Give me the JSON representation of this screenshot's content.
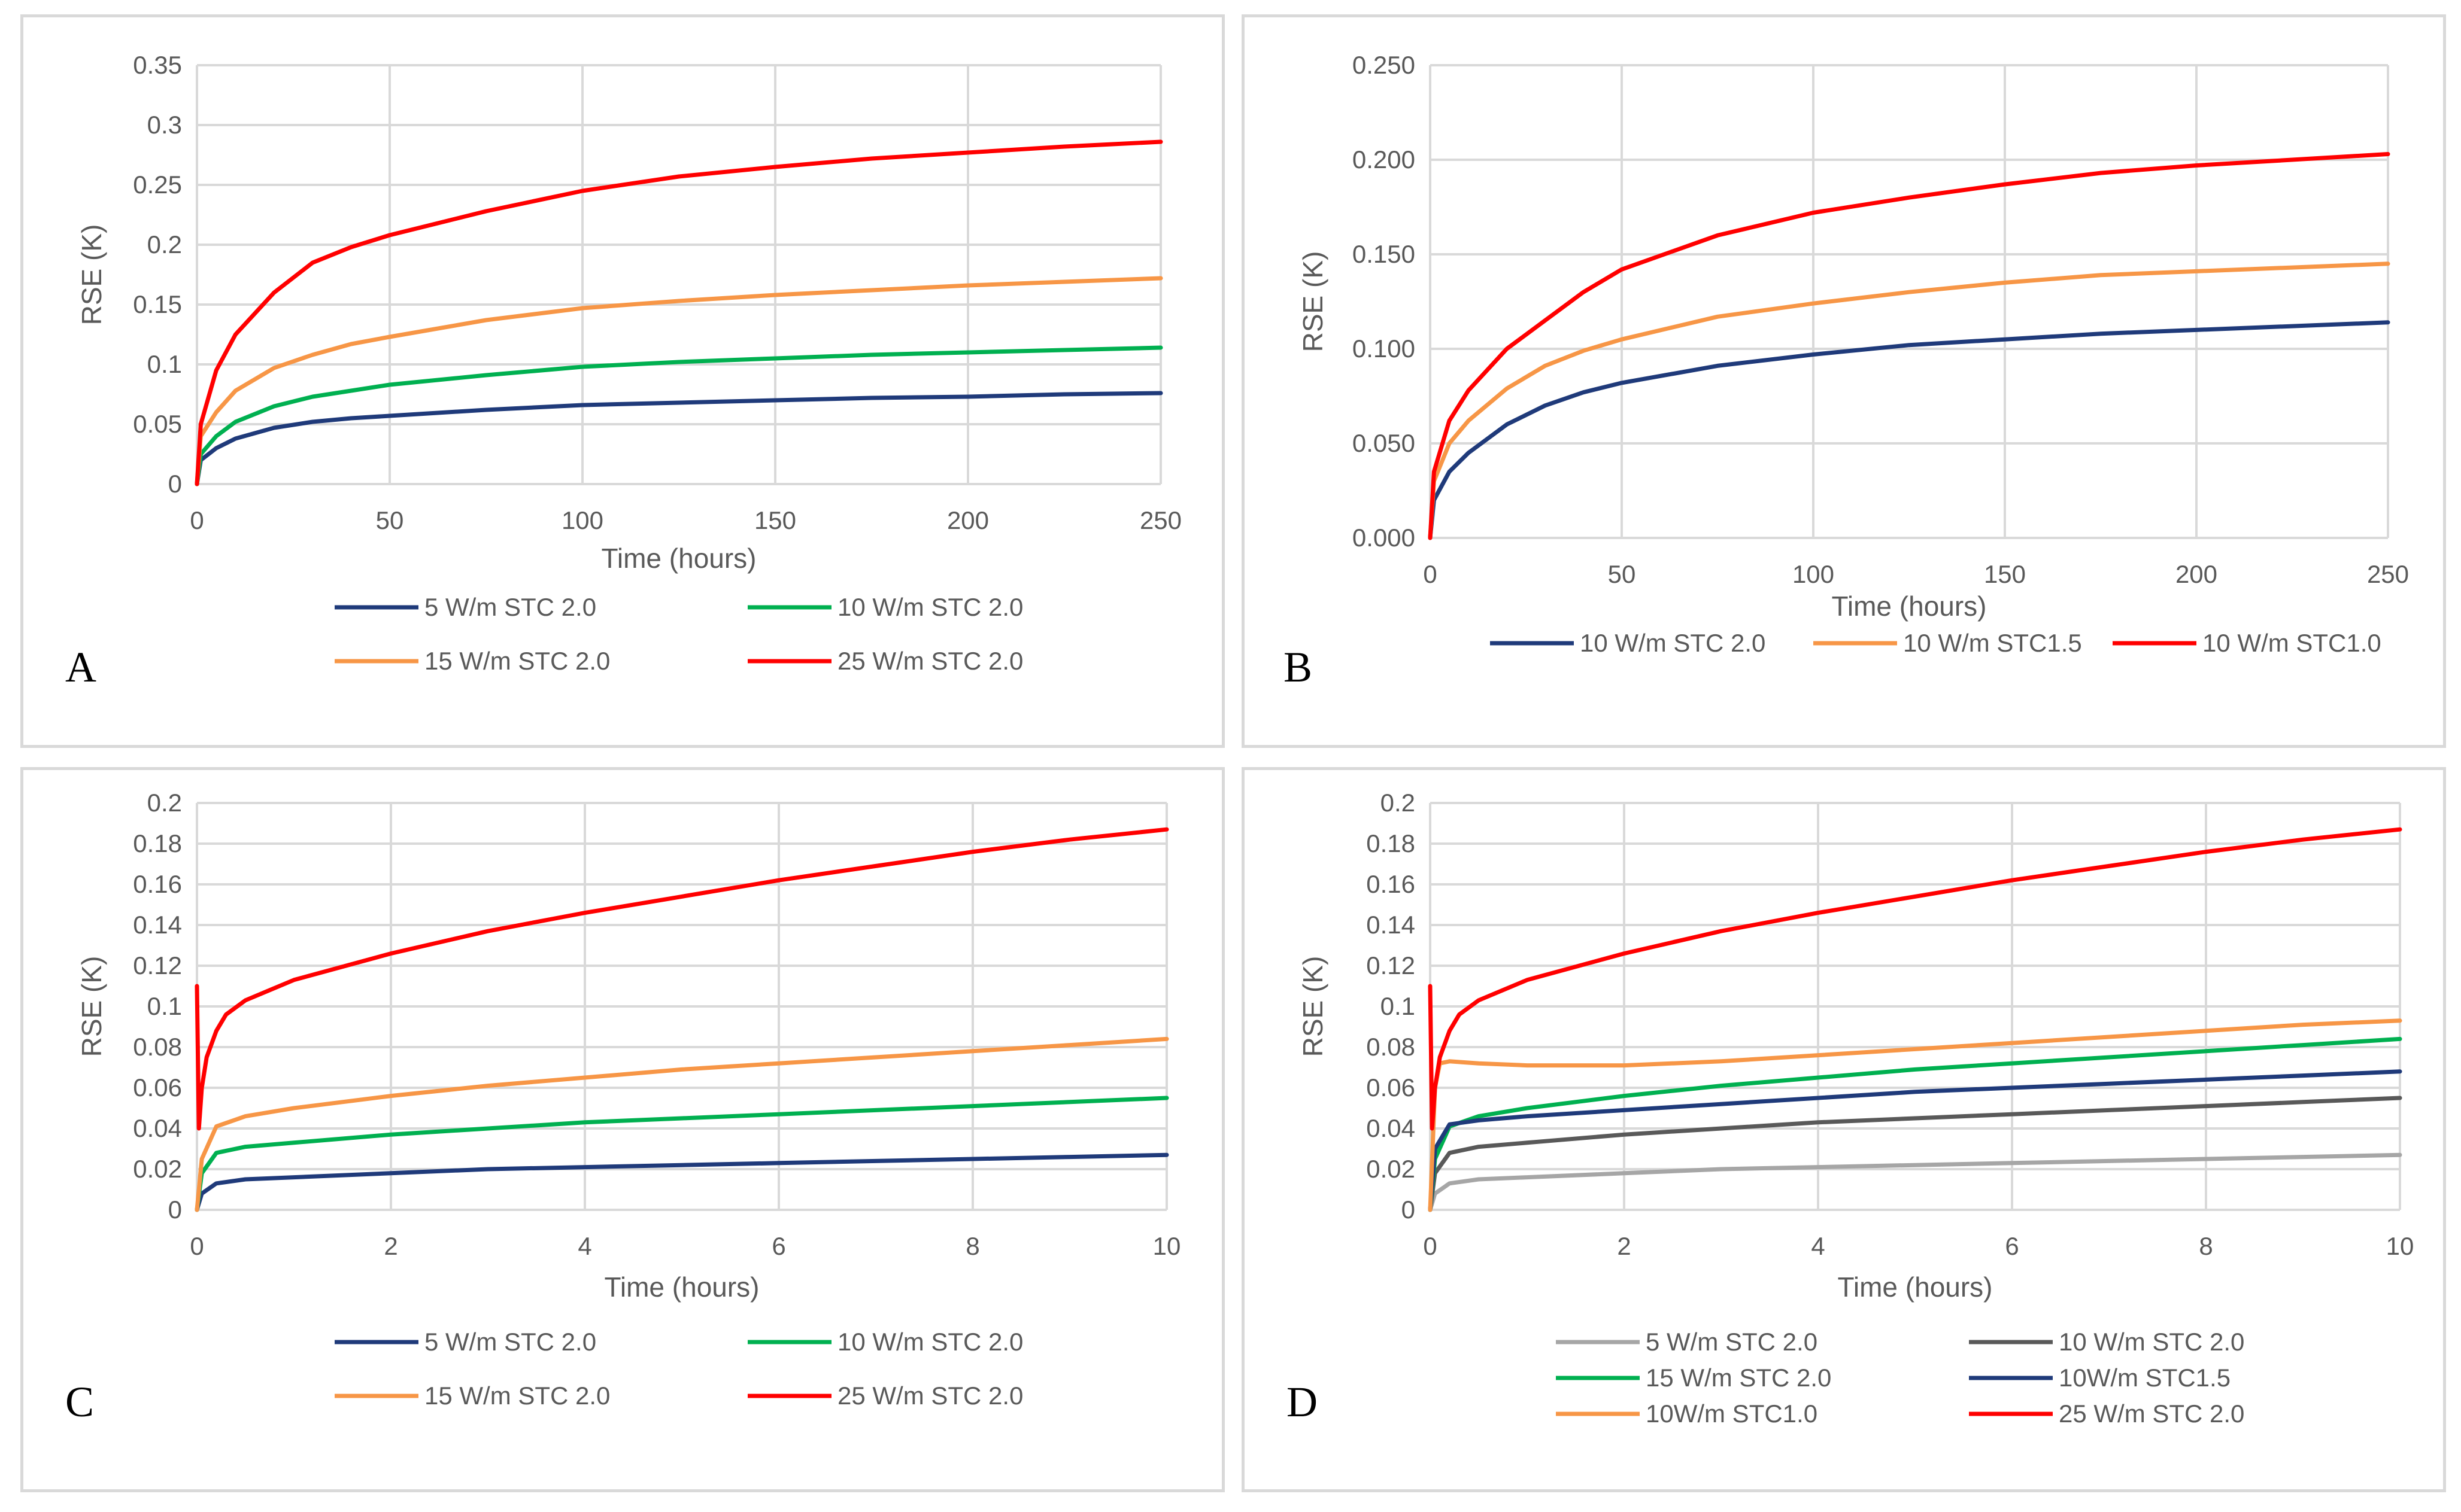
{
  "chart_data": [
    {
      "id": "A",
      "type": "line",
      "panel_label": "A",
      "xlabel": "Time (hours)",
      "ylabel": "RSE (K)",
      "xlim": [
        0,
        250
      ],
      "ylim": [
        0,
        0.35
      ],
      "xticks": [
        "0",
        "50",
        "100",
        "150",
        "200",
        "250"
      ],
      "yticks": [
        "0",
        "0.05",
        "0.1",
        "0.15",
        "0.2",
        "0.25",
        "0.3",
        "0.35"
      ],
      "grid": true,
      "legend_position": "bottom",
      "series": [
        {
          "name": "5 W/m STC 2.0",
          "color": "#1f3a7a",
          "x": [
            0,
            1,
            5,
            10,
            20,
            30,
            40,
            50,
            75,
            100,
            125,
            150,
            175,
            200,
            225,
            250
          ],
          "y": [
            0,
            0.02,
            0.03,
            0.038,
            0.047,
            0.052,
            0.055,
            0.057,
            0.062,
            0.066,
            0.068,
            0.07,
            0.072,
            0.073,
            0.075,
            0.076
          ]
        },
        {
          "name": "10 W/m STC 2.0",
          "color": "#00b050",
          "x": [
            0,
            1,
            5,
            10,
            20,
            30,
            40,
            50,
            75,
            100,
            125,
            150,
            175,
            200,
            225,
            250
          ],
          "y": [
            0,
            0.025,
            0.04,
            0.052,
            0.065,
            0.073,
            0.078,
            0.083,
            0.091,
            0.098,
            0.102,
            0.105,
            0.108,
            0.11,
            0.112,
            0.114
          ]
        },
        {
          "name": "15 W/m STC 2.0",
          "color": "#f79646",
          "x": [
            0,
            1,
            5,
            10,
            20,
            30,
            40,
            50,
            75,
            100,
            125,
            150,
            175,
            200,
            225,
            250
          ],
          "y": [
            0,
            0.04,
            0.06,
            0.078,
            0.097,
            0.108,
            0.117,
            0.123,
            0.137,
            0.147,
            0.153,
            0.158,
            0.162,
            0.166,
            0.169,
            0.172
          ]
        },
        {
          "name": "25 W/m STC 2.0",
          "color": "#ff0000",
          "x": [
            0,
            1,
            5,
            10,
            20,
            30,
            40,
            50,
            75,
            100,
            125,
            150,
            175,
            200,
            225,
            250
          ],
          "y": [
            0,
            0.05,
            0.095,
            0.125,
            0.16,
            0.185,
            0.198,
            0.208,
            0.228,
            0.245,
            0.257,
            0.265,
            0.272,
            0.277,
            0.282,
            0.286
          ]
        }
      ]
    },
    {
      "id": "B",
      "type": "line",
      "panel_label": "B",
      "xlabel": "Time (hours)",
      "ylabel": "RSE (K)",
      "xlim": [
        0,
        250
      ],
      "ylim": [
        0,
        0.25
      ],
      "xticks": [
        "0",
        "50",
        "100",
        "150",
        "200",
        "250"
      ],
      "yticks": [
        "0.000",
        "0.050",
        "0.100",
        "0.150",
        "0.200",
        "0.250"
      ],
      "grid": true,
      "legend_position": "bottom",
      "series": [
        {
          "name": "10 W/m STC 2.0",
          "color": "#1f3a7a",
          "x": [
            0,
            1,
            5,
            10,
            20,
            30,
            40,
            50,
            75,
            100,
            125,
            150,
            175,
            200,
            225,
            250
          ],
          "y": [
            0,
            0.02,
            0.035,
            0.045,
            0.06,
            0.07,
            0.077,
            0.082,
            0.091,
            0.097,
            0.102,
            0.105,
            0.108,
            0.11,
            0.112,
            0.114
          ]
        },
        {
          "name": "10 W/m STC1.5",
          "color": "#f79646",
          "x": [
            0,
            1,
            5,
            10,
            20,
            30,
            40,
            50,
            75,
            100,
            125,
            150,
            175,
            200,
            225,
            250
          ],
          "y": [
            0,
            0.03,
            0.05,
            0.062,
            0.079,
            0.091,
            0.099,
            0.105,
            0.117,
            0.124,
            0.13,
            0.135,
            0.139,
            0.141,
            0.143,
            0.145
          ]
        },
        {
          "name": "10 W/m STC1.0",
          "color": "#ff0000",
          "x": [
            0,
            1,
            5,
            10,
            20,
            30,
            40,
            50,
            75,
            100,
            125,
            150,
            175,
            200,
            225,
            250
          ],
          "y": [
            0,
            0.035,
            0.062,
            0.078,
            0.1,
            0.115,
            0.13,
            0.142,
            0.16,
            0.172,
            0.18,
            0.187,
            0.193,
            0.197,
            0.2,
            0.203
          ]
        }
      ]
    },
    {
      "id": "C",
      "type": "line",
      "panel_label": "C",
      "xlabel": "Time (hours)",
      "ylabel": "RSE (K)",
      "xlim": [
        0,
        10
      ],
      "ylim": [
        0,
        0.2
      ],
      "xticks": [
        "0",
        "2",
        "4",
        "6",
        "8",
        "10"
      ],
      "yticks": [
        "0",
        "0.02",
        "0.04",
        "0.06",
        "0.08",
        "0.1",
        "0.12",
        "0.14",
        "0.16",
        "0.18",
        "0.2"
      ],
      "grid": true,
      "legend_position": "bottom",
      "series": [
        {
          "name": "5 W/m STC 2.0",
          "color": "#1f3a7a",
          "x": [
            0,
            0.05,
            0.2,
            0.5,
            1,
            2,
            3,
            4,
            5,
            6,
            7,
            8,
            9,
            10
          ],
          "y": [
            0,
            0.008,
            0.013,
            0.015,
            0.016,
            0.018,
            0.02,
            0.021,
            0.022,
            0.023,
            0.024,
            0.025,
            0.026,
            0.027
          ]
        },
        {
          "name": "10 W/m STC 2.0",
          "color": "#00b050",
          "x": [
            0,
            0.05,
            0.2,
            0.5,
            1,
            2,
            3,
            4,
            5,
            6,
            7,
            8,
            9,
            10
          ],
          "y": [
            0,
            0.018,
            0.028,
            0.031,
            0.033,
            0.037,
            0.04,
            0.043,
            0.045,
            0.047,
            0.049,
            0.051,
            0.053,
            0.055
          ]
        },
        {
          "name": "15 W/m STC 2.0",
          "color": "#f79646",
          "x": [
            0,
            0.05,
            0.2,
            0.5,
            1,
            2,
            3,
            4,
            5,
            6,
            7,
            8,
            9,
            10
          ],
          "y": [
            0,
            0.025,
            0.041,
            0.046,
            0.05,
            0.056,
            0.061,
            0.065,
            0.069,
            0.072,
            0.075,
            0.078,
            0.081,
            0.084
          ]
        },
        {
          "name": "25 W/m STC 2.0",
          "color": "#ff0000",
          "x": [
            0,
            0.02,
            0.05,
            0.1,
            0.2,
            0.3,
            0.5,
            1,
            2,
            3,
            4,
            5,
            6,
            7,
            8,
            9,
            10
          ],
          "y": [
            0.11,
            0.04,
            0.06,
            0.075,
            0.088,
            0.096,
            0.103,
            0.113,
            0.126,
            0.137,
            0.146,
            0.154,
            0.162,
            0.169,
            0.176,
            0.182,
            0.187
          ]
        }
      ]
    },
    {
      "id": "D",
      "type": "line",
      "panel_label": "D",
      "xlabel": "Time (hours)",
      "ylabel": "RSE (K)",
      "xlim": [
        0,
        10
      ],
      "ylim": [
        0,
        0.2
      ],
      "xticks": [
        "0",
        "2",
        "4",
        "6",
        "8",
        "10"
      ],
      "yticks": [
        "0",
        "0.02",
        "0.04",
        "0.06",
        "0.08",
        "0.1",
        "0.12",
        "0.14",
        "0.16",
        "0.18",
        "0.2"
      ],
      "grid": true,
      "legend_position": "bottom",
      "series": [
        {
          "name": "5 W/m STC 2.0",
          "color": "#a6a6a6",
          "x": [
            0,
            0.05,
            0.2,
            0.5,
            1,
            2,
            3,
            4,
            5,
            6,
            7,
            8,
            9,
            10
          ],
          "y": [
            0,
            0.008,
            0.013,
            0.015,
            0.016,
            0.018,
            0.02,
            0.021,
            0.022,
            0.023,
            0.024,
            0.025,
            0.026,
            0.027
          ]
        },
        {
          "name": "10 W/m STC 2.0",
          "color": "#595959",
          "x": [
            0,
            0.05,
            0.2,
            0.5,
            1,
            2,
            3,
            4,
            5,
            6,
            7,
            8,
            9,
            10
          ],
          "y": [
            0,
            0.018,
            0.028,
            0.031,
            0.033,
            0.037,
            0.04,
            0.043,
            0.045,
            0.047,
            0.049,
            0.051,
            0.053,
            0.055
          ]
        },
        {
          "name": "15 W/m STC 2.0",
          "color": "#00b050",
          "x": [
            0,
            0.05,
            0.2,
            0.5,
            1,
            2,
            3,
            4,
            5,
            6,
            7,
            8,
            9,
            10
          ],
          "y": [
            0,
            0.025,
            0.041,
            0.046,
            0.05,
            0.056,
            0.061,
            0.065,
            0.069,
            0.072,
            0.075,
            0.078,
            0.081,
            0.084
          ]
        },
        {
          "name": "10W/m STC1.5",
          "color": "#1f3a7a",
          "x": [
            0,
            0.05,
            0.2,
            0.5,
            1,
            2,
            3,
            4,
            5,
            6,
            7,
            8,
            9,
            10
          ],
          "y": [
            0,
            0.03,
            0.042,
            0.044,
            0.046,
            0.049,
            0.052,
            0.055,
            0.058,
            0.06,
            0.062,
            0.064,
            0.066,
            0.068
          ]
        },
        {
          "name": "10W/m STC1.0",
          "color": "#f79646",
          "x": [
            0,
            0.05,
            0.1,
            0.2,
            0.5,
            1,
            2,
            3,
            4,
            5,
            6,
            7,
            8,
            9,
            10
          ],
          "y": [
            0,
            0.06,
            0.072,
            0.073,
            0.072,
            0.071,
            0.071,
            0.073,
            0.076,
            0.079,
            0.082,
            0.085,
            0.088,
            0.091,
            0.093
          ]
        },
        {
          "name": "25 W/m STC 2.0",
          "color": "#ff0000",
          "x": [
            0,
            0.02,
            0.05,
            0.1,
            0.2,
            0.3,
            0.5,
            1,
            2,
            3,
            4,
            5,
            6,
            7,
            8,
            9,
            10
          ],
          "y": [
            0.11,
            0.04,
            0.06,
            0.075,
            0.088,
            0.096,
            0.103,
            0.113,
            0.126,
            0.137,
            0.146,
            0.154,
            0.162,
            0.169,
            0.176,
            0.182,
            0.187
          ]
        }
      ]
    }
  ]
}
